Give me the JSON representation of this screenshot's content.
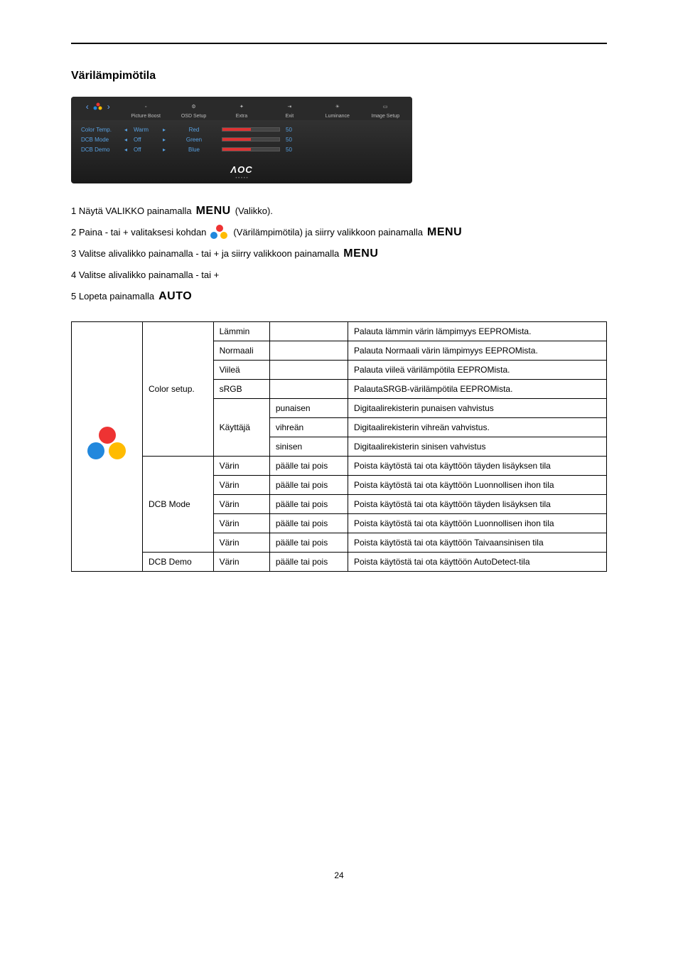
{
  "heading": "Värilämpimötila",
  "osd": {
    "tabs": [
      "",
      "Picture Boost",
      "OSD Setup",
      "Extra",
      "Exit",
      "Luminance",
      "Image Setup"
    ],
    "rows": [
      {
        "label": "Color Temp.",
        "value": "Warm",
        "param": "Red",
        "num": "50"
      },
      {
        "label": "DCB Mode",
        "value": "Off",
        "param": "Green",
        "num": "50"
      },
      {
        "label": "DCB Demo",
        "value": "Off",
        "param": "Blue",
        "num": "50"
      }
    ],
    "logo": "ΛOC"
  },
  "steps": {
    "s1a": "1 Näytä VALIKKO painamalla",
    "s1b": "(Valikko).",
    "s2a": "2 Paina - tai + valitaksesi kohdan",
    "s2b": "(Värilämpimötila) ja siirry valikkoon painamalla",
    "s3": "3 Valitse alivalikko painamalla - tai + ja siirry valikkoon painamalla",
    "s4": "4 Valitse alivalikko painamalla - tai +",
    "s5": "5 Lopeta painamalla",
    "menu": "MENU",
    "auto": "AUTO"
  },
  "table": {
    "groups": [
      {
        "label": "Color setup.",
        "rows": [
          {
            "c1": "Lämmin",
            "c2": "",
            "c3": "Palauta lämmin värin lämpimyys EEPROMista."
          },
          {
            "c1": "Normaali",
            "c2": "",
            "c3": "Palauta Normaali värin lämpimyys EEPROMista."
          },
          {
            "c1": "Viileä",
            "c2": "",
            "c3": "Palauta viileä värilämpötila EEPROMista."
          },
          {
            "c1": "sRGB",
            "c2": "",
            "c3": "PalautaSRGB-värilämpötila EEPROMista."
          },
          {
            "c1": "Käyttäjä",
            "span": 3,
            "sub": [
              {
                "c2": "punaisen",
                "c3": "Digitaalirekisterin punaisen vahvistus"
              },
              {
                "c2": "vihreän",
                "c3": "Digitaalirekisterin vihreän vahvistus."
              },
              {
                "c2": "sinisen",
                "c3": "Digitaalirekisterin sinisen vahvistus"
              }
            ]
          }
        ]
      },
      {
        "label": "DCB Mode",
        "rows": [
          {
            "c1": "Värin",
            "c2": "päälle tai pois",
            "c3": "Poista käytöstä tai ota käyttöön täyden lisäyksen tila"
          },
          {
            "c1": "Värin",
            "c2": "päälle tai pois",
            "c3": "Poista käytöstä tai ota käyttöön Luonnollisen ihon tila"
          },
          {
            "c1": "Värin",
            "c2": "päälle tai pois",
            "c3": "Poista käytöstä tai ota käyttöön täyden lisäyksen tila"
          },
          {
            "c1": "Värin",
            "c2": "päälle tai pois",
            "c3": "Poista käytöstä tai ota käyttöön Luonnollisen ihon tila"
          },
          {
            "c1": "Värin",
            "c2": "päälle tai pois",
            "c3": "Poista käytöstä tai ota käyttöön Taivaansinisen tila"
          }
        ]
      },
      {
        "label": "DCB Demo",
        "rows": [
          {
            "c1": "Värin",
            "c2": "päälle tai pois",
            "c3": "Poista käytöstä tai ota käyttöön AutoDetect-tila"
          }
        ]
      }
    ]
  },
  "pageNum": "24"
}
